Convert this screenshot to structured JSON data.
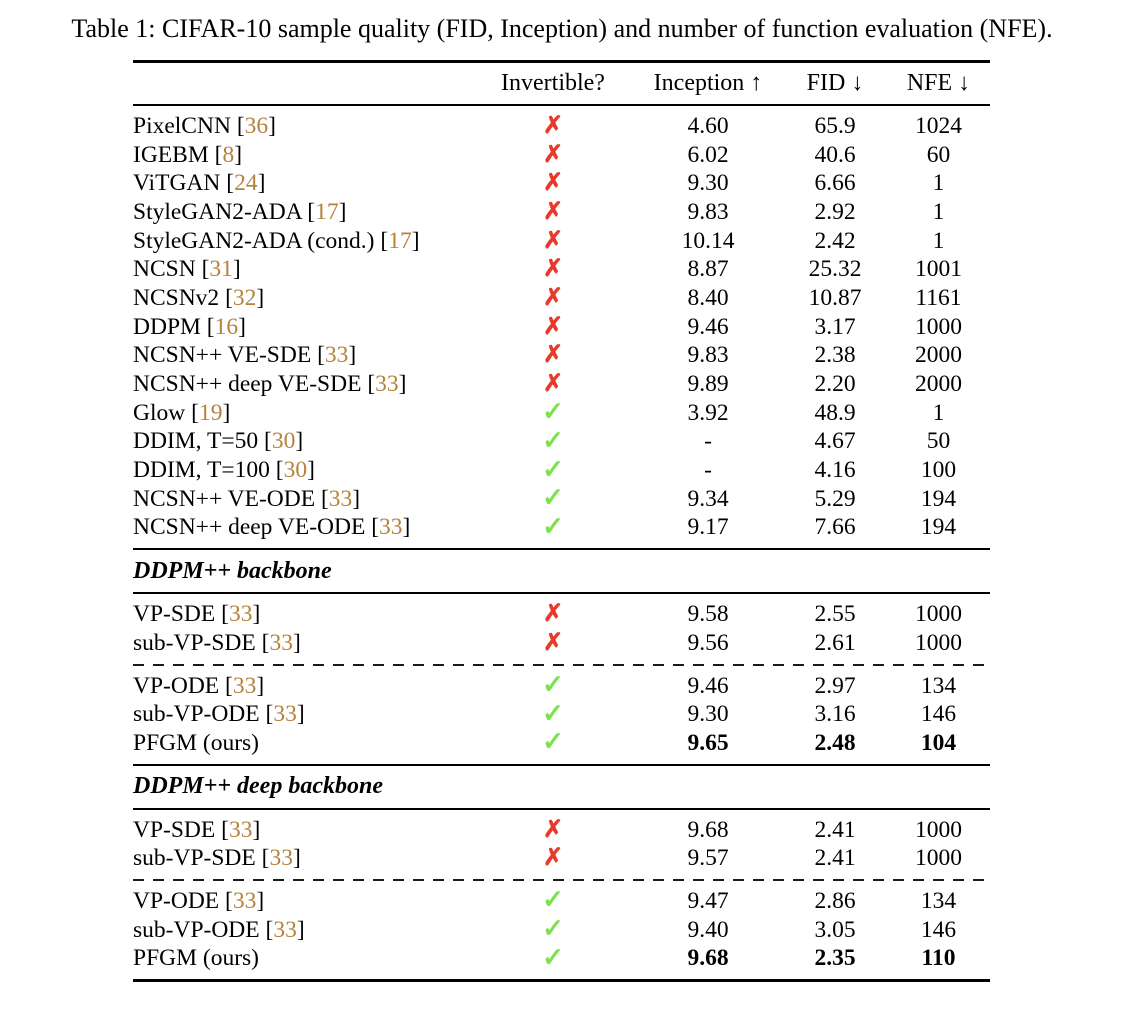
{
  "caption": "Table 1: CIFAR-10 sample quality (FID, Inception) and number of function evaluation (NFE).",
  "colors": {
    "citation": "#b5823c",
    "cross": "#e8392a",
    "check": "#7de04e"
  },
  "icons": {
    "x": "✗",
    "check": "✓"
  },
  "brackets": {
    "open": " [",
    "close": "]"
  },
  "table": {
    "headers": {
      "method": "",
      "invertible": "Invertible?",
      "inception": "Inception ↑",
      "fid": "FID ↓",
      "nfe": "NFE ↓"
    },
    "sections": [
      {
        "type": "rows",
        "rows": [
          {
            "method": "PixelCNN",
            "cite": "36",
            "mark": "x",
            "inception": "4.60",
            "fid": "65.9",
            "nfe": "1024"
          },
          {
            "method": "IGEBM",
            "cite": "8",
            "mark": "x",
            "inception": "6.02",
            "fid": "40.6",
            "nfe": "60"
          },
          {
            "method": "ViTGAN",
            "cite": "24",
            "mark": "x",
            "inception": "9.30",
            "fid": "6.66",
            "nfe": "1"
          },
          {
            "method": "StyleGAN2-ADA",
            "cite": "17",
            "mark": "x",
            "inception": "9.83",
            "fid": "2.92",
            "nfe": "1"
          },
          {
            "method": "StyleGAN2-ADA (cond.)",
            "cite": "17",
            "mark": "x",
            "inception": "10.14",
            "fid": "2.42",
            "nfe": "1"
          },
          {
            "method": "NCSN",
            "cite": "31",
            "mark": "x",
            "inception": "8.87",
            "fid": "25.32",
            "nfe": "1001"
          },
          {
            "method": "NCSNv2",
            "cite": "32",
            "mark": "x",
            "inception": "8.40",
            "fid": "10.87",
            "nfe": "1161"
          },
          {
            "method": "DDPM",
            "cite": "16",
            "mark": "x",
            "inception": "9.46",
            "fid": "3.17",
            "nfe": "1000"
          },
          {
            "method": "NCSN++ VE-SDE",
            "cite": "33",
            "mark": "x",
            "inception": "9.83",
            "fid": "2.38",
            "nfe": "2000"
          },
          {
            "method": "NCSN++ deep VE-SDE",
            "cite": "33",
            "mark": "x",
            "inception": "9.89",
            "fid": "2.20",
            "nfe": "2000"
          },
          {
            "method": "Glow",
            "cite": "19",
            "mark": "check",
            "inception": "3.92",
            "fid": "48.9",
            "nfe": "1"
          },
          {
            "method": "DDIM, T=50",
            "cite": "30",
            "mark": "check",
            "inception": "-",
            "fid": "4.67",
            "nfe": "50"
          },
          {
            "method": "DDIM, T=100",
            "cite": "30",
            "mark": "check",
            "inception": "-",
            "fid": "4.16",
            "nfe": "100"
          },
          {
            "method": "NCSN++ VE-ODE",
            "cite": "33",
            "mark": "check",
            "inception": "9.34",
            "fid": "5.29",
            "nfe": "194"
          },
          {
            "method": "NCSN++ deep VE-ODE",
            "cite": "33",
            "mark": "check",
            "inception": "9.17",
            "fid": "7.66",
            "nfe": "194"
          }
        ]
      },
      {
        "type": "subheader",
        "label": "DDPM++ backbone"
      },
      {
        "type": "rows",
        "rows": [
          {
            "method": "VP-SDE",
            "cite": "33",
            "mark": "x",
            "inception": "9.58",
            "fid": "2.55",
            "nfe": "1000"
          },
          {
            "method": "sub-VP-SDE",
            "cite": "33",
            "mark": "x",
            "inception": "9.56",
            "fid": "2.61",
            "nfe": "1000"
          }
        ]
      },
      {
        "type": "dashed"
      },
      {
        "type": "rows",
        "rows": [
          {
            "method": "VP-ODE",
            "cite": "33",
            "mark": "check",
            "inception": "9.46",
            "fid": "2.97",
            "nfe": "134"
          },
          {
            "method": "sub-VP-ODE",
            "cite": "33",
            "mark": "check",
            "inception": "9.30",
            "fid": "3.16",
            "nfe": "146"
          },
          {
            "method": "PFGM (ours)",
            "cite": null,
            "mark": "check",
            "inception": "9.65",
            "fid": "2.48",
            "nfe": "104",
            "bold": true
          }
        ]
      },
      {
        "type": "subheader",
        "label": "DDPM++ deep backbone"
      },
      {
        "type": "rows",
        "rows": [
          {
            "method": "VP-SDE",
            "cite": "33",
            "mark": "x",
            "inception": "9.68",
            "fid": "2.41",
            "nfe": "1000"
          },
          {
            "method": "sub-VP-SDE",
            "cite": "33",
            "mark": "x",
            "inception": "9.57",
            "fid": "2.41",
            "nfe": "1000"
          }
        ]
      },
      {
        "type": "dashed"
      },
      {
        "type": "rows",
        "rows": [
          {
            "method": "VP-ODE",
            "cite": "33",
            "mark": "check",
            "inception": "9.47",
            "fid": "2.86",
            "nfe": "134"
          },
          {
            "method": "sub-VP-ODE",
            "cite": "33",
            "mark": "check",
            "inception": "9.40",
            "fid": "3.05",
            "nfe": "146"
          },
          {
            "method": "PFGM (ours)",
            "cite": null,
            "mark": "check",
            "inception": "9.68",
            "fid": "2.35",
            "nfe": "110",
            "bold": true
          }
        ]
      }
    ]
  }
}
